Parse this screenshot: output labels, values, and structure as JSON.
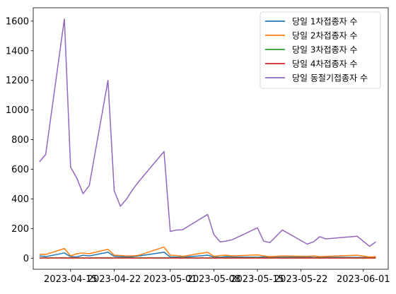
{
  "chart_data": {
    "type": "line",
    "title": "",
    "xlabel": "",
    "ylabel": "",
    "x_axis_type": "date",
    "xlim": [
      "2023-04-09",
      "2023-06-05"
    ],
    "ylim": [
      -75,
      1690
    ],
    "x_ticks": [
      "2023-04-15",
      "2023-04-22",
      "2023-05-01",
      "2023-05-08",
      "2023-05-15",
      "2023-05-22",
      "2023-06-01"
    ],
    "y_ticks": [
      0,
      200,
      400,
      600,
      800,
      1000,
      1200,
      1400,
      1600
    ],
    "grid": false,
    "legend_position": "top-right",
    "x": [
      "2023-04-10",
      "2023-04-11",
      "2023-04-14",
      "2023-04-15",
      "2023-04-16",
      "2023-04-17",
      "2023-04-18",
      "2023-04-21",
      "2023-04-22",
      "2023-04-23",
      "2023-04-24",
      "2023-04-25",
      "2023-04-26",
      "2023-04-30",
      "2023-05-01",
      "2023-05-02",
      "2023-05-03",
      "2023-05-07",
      "2023-05-08",
      "2023-05-09",
      "2023-05-10",
      "2023-05-11",
      "2023-05-15",
      "2023-05-16",
      "2023-05-17",
      "2023-05-19",
      "2023-05-23",
      "2023-05-24",
      "2023-05-25",
      "2023-05-26",
      "2023-05-31",
      "2023-06-02",
      "2023-06-03"
    ],
    "series": [
      {
        "name": "당일 1차접종자 수",
        "color": "#1f77b4",
        "values": [
          15,
          10,
          35,
          10,
          8,
          20,
          15,
          40,
          12,
          10,
          8,
          10,
          15,
          40,
          8,
          8,
          6,
          20,
          8,
          6,
          10,
          8,
          6,
          8,
          6,
          6,
          8,
          5,
          5,
          6,
          5,
          5,
          5
        ]
      },
      {
        "name": "당일 2차접종자 수",
        "color": "#ff7f0e",
        "values": [
          25,
          25,
          65,
          15,
          30,
          35,
          30,
          60,
          20,
          18,
          15,
          15,
          20,
          75,
          20,
          18,
          12,
          40,
          12,
          18,
          20,
          15,
          22,
          15,
          10,
          15,
          12,
          15,
          10,
          12,
          20,
          8,
          10
        ]
      },
      {
        "name": "당일 3차접종자 수",
        "color": "#2ca02c",
        "values": [
          2,
          2,
          3,
          2,
          2,
          2,
          2,
          3,
          2,
          2,
          2,
          2,
          2,
          3,
          2,
          2,
          2,
          2,
          2,
          2,
          2,
          2,
          2,
          2,
          2,
          2,
          2,
          2,
          2,
          2,
          2,
          2,
          2
        ]
      },
      {
        "name": "당일 4차접종자 수",
        "color": "#d62728",
        "values": [
          1,
          1,
          1,
          1,
          1,
          1,
          1,
          1,
          1,
          1,
          1,
          1,
          1,
          1,
          1,
          1,
          1,
          1,
          1,
          1,
          1,
          1,
          1,
          1,
          1,
          1,
          1,
          1,
          1,
          1,
          1,
          1,
          1
        ]
      },
      {
        "name": "당일 동절기접종자 수",
        "color": "#9467bd",
        "values": [
          650,
          700,
          1615,
          615,
          540,
          435,
          490,
          1200,
          455,
          350,
          400,
          465,
          520,
          720,
          180,
          190,
          192,
          295,
          160,
          110,
          115,
          125,
          205,
          115,
          105,
          190,
          95,
          110,
          145,
          130,
          148,
          80,
          110
        ]
      }
    ]
  }
}
